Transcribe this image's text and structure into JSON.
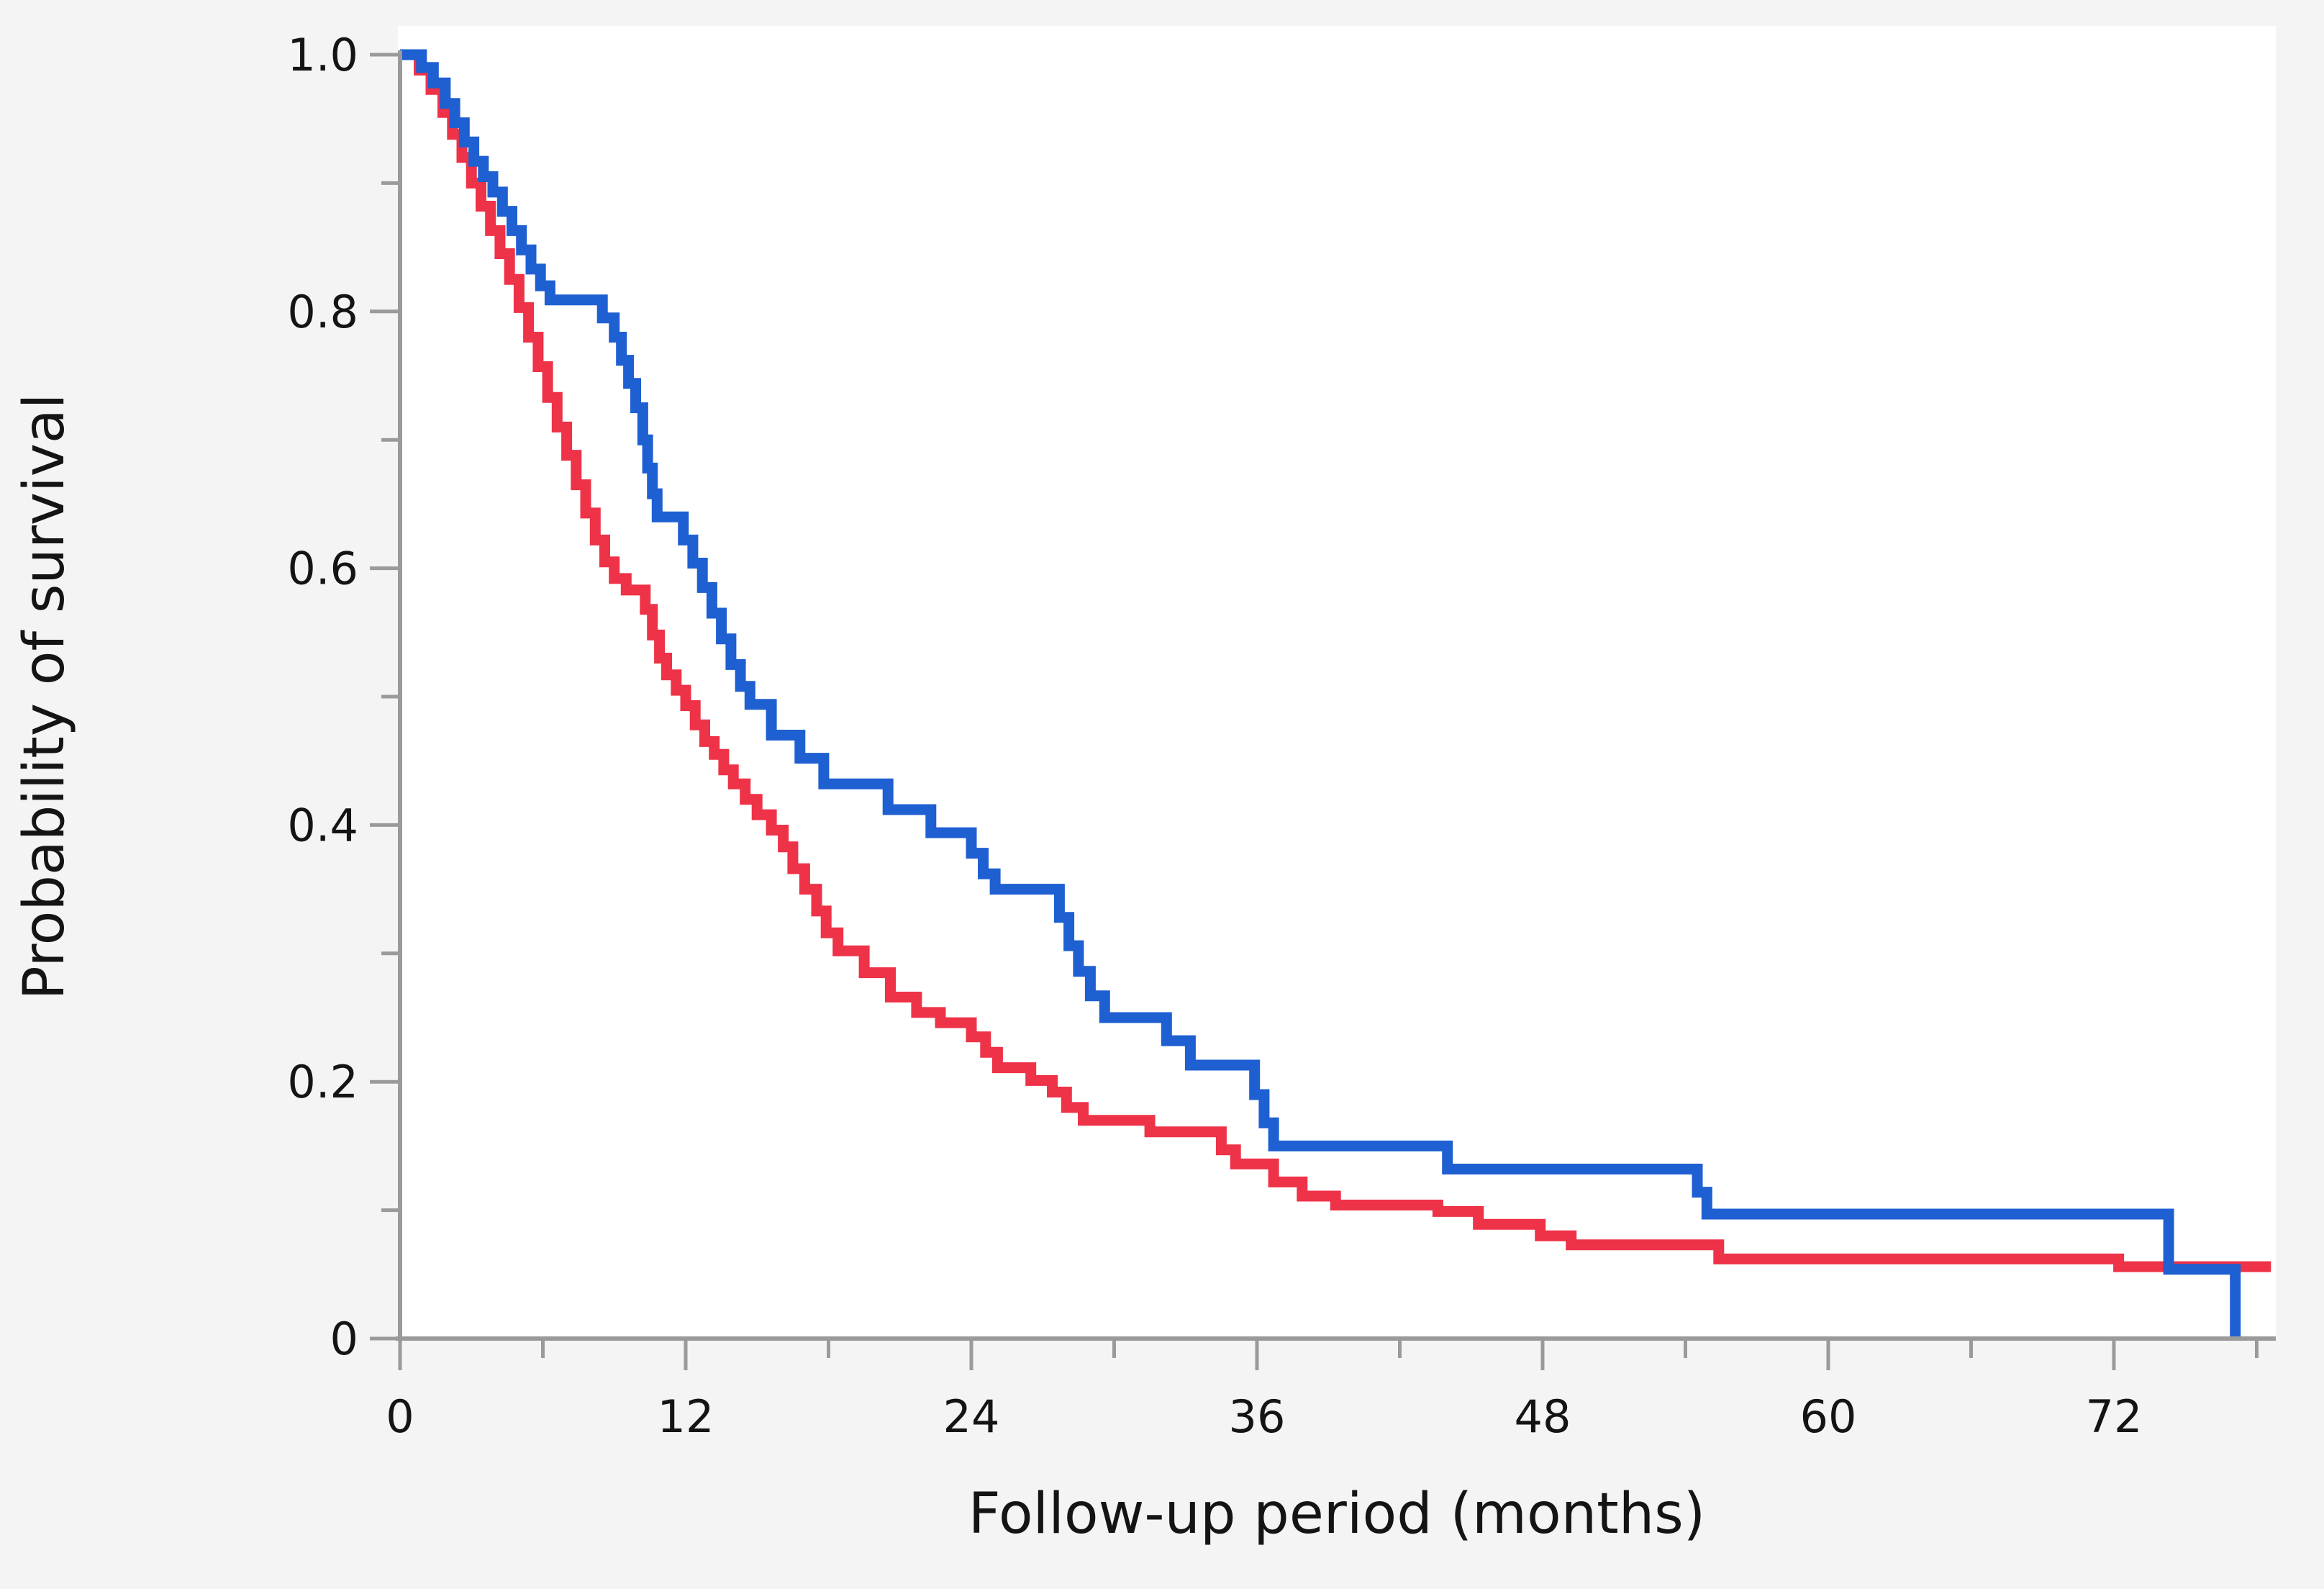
{
  "page": {
    "colors": {
      "background": "#f4f4f4",
      "plot_background": "#ffffff",
      "axis": "#9a9a9a",
      "text": "#141414",
      "series_blue": "#1e5fd2",
      "series_red": "#ee3248"
    }
  },
  "chart_data": {
    "type": "line",
    "subtype": "kaplan-meier-step-survival",
    "title": "",
    "xlabel": "Follow-up period (months)",
    "ylabel": "Probability of survival",
    "xlim": [
      0,
      78.9
    ],
    "ylim": [
      0,
      1.0
    ],
    "grid": false,
    "legend_position": "none",
    "x_major_ticks": [
      0,
      12,
      24,
      36,
      48,
      60,
      72
    ],
    "x_tick_labels": [
      "0",
      "12",
      "24",
      "36",
      "48",
      "60",
      "72"
    ],
    "x_minor_ticks": [
      6,
      18,
      30,
      42,
      54,
      66,
      78
    ],
    "y_major_ticks": [
      1.0,
      0.8,
      0.6,
      0.4,
      0.2,
      0
    ],
    "y_tick_labels": [
      "1.0",
      "0.8",
      "0.6",
      "0.4",
      "0.2",
      "0"
    ],
    "y_minor_ticks": [
      0.9,
      0.7,
      0.5,
      0.3,
      0.1
    ],
    "series": [
      {
        "name": "red-curve",
        "color": "#ee3248",
        "points": [
          [
            0,
            1.0
          ],
          [
            0.8,
            0.988
          ],
          [
            1.3,
            0.973
          ],
          [
            1.8,
            0.955
          ],
          [
            2.2,
            0.938
          ],
          [
            2.6,
            0.92
          ],
          [
            3.0,
            0.9
          ],
          [
            3.4,
            0.882
          ],
          [
            3.8,
            0.863
          ],
          [
            4.2,
            0.845
          ],
          [
            4.6,
            0.825
          ],
          [
            5.0,
            0.803
          ],
          [
            5.4,
            0.78
          ],
          [
            5.8,
            0.757
          ],
          [
            6.2,
            0.733
          ],
          [
            6.6,
            0.71
          ],
          [
            7.0,
            0.688
          ],
          [
            7.4,
            0.665
          ],
          [
            7.8,
            0.643
          ],
          [
            8.2,
            0.622
          ],
          [
            8.6,
            0.605
          ],
          [
            9.0,
            0.592
          ],
          [
            9.5,
            0.583
          ],
          [
            10.3,
            0.568
          ],
          [
            10.6,
            0.548
          ],
          [
            10.9,
            0.53
          ],
          [
            11.2,
            0.517
          ],
          [
            11.6,
            0.505
          ],
          [
            12.0,
            0.493
          ],
          [
            12.4,
            0.478
          ],
          [
            12.8,
            0.465
          ],
          [
            13.2,
            0.455
          ],
          [
            13.6,
            0.443
          ],
          [
            14.0,
            0.432
          ],
          [
            14.5,
            0.42
          ],
          [
            15.0,
            0.408
          ],
          [
            15.6,
            0.396
          ],
          [
            16.1,
            0.383
          ],
          [
            16.5,
            0.366
          ],
          [
            17.0,
            0.35
          ],
          [
            17.5,
            0.333
          ],
          [
            17.9,
            0.316
          ],
          [
            18.4,
            0.302
          ],
          [
            19.5,
            0.285
          ],
          [
            20.6,
            0.266
          ],
          [
            21.7,
            0.254
          ],
          [
            22.7,
            0.246
          ],
          [
            24.0,
            0.235
          ],
          [
            24.6,
            0.223
          ],
          [
            25.1,
            0.211
          ],
          [
            26.5,
            0.201
          ],
          [
            27.4,
            0.192
          ],
          [
            28.0,
            0.18
          ],
          [
            28.7,
            0.17
          ],
          [
            31.5,
            0.161
          ],
          [
            34.5,
            0.147
          ],
          [
            35.1,
            0.136
          ],
          [
            36.7,
            0.122
          ],
          [
            37.9,
            0.111
          ],
          [
            39.3,
            0.104
          ],
          [
            43.6,
            0.099
          ],
          [
            45.3,
            0.089
          ],
          [
            47.9,
            0.08
          ],
          [
            49.2,
            0.073
          ],
          [
            55.4,
            0.062
          ],
          [
            72.2,
            0.056
          ],
          [
            78.6,
            0.056
          ]
        ]
      },
      {
        "name": "blue-curve",
        "color": "#1e5fd2",
        "points": [
          [
            0,
            1.0
          ],
          [
            0.9,
            0.99
          ],
          [
            1.4,
            0.978
          ],
          [
            1.9,
            0.962
          ],
          [
            2.3,
            0.947
          ],
          [
            2.7,
            0.932
          ],
          [
            3.1,
            0.917
          ],
          [
            3.5,
            0.905
          ],
          [
            3.9,
            0.893
          ],
          [
            4.3,
            0.878
          ],
          [
            4.7,
            0.863
          ],
          [
            5.1,
            0.848
          ],
          [
            5.5,
            0.833
          ],
          [
            5.9,
            0.82
          ],
          [
            6.3,
            0.809
          ],
          [
            8.5,
            0.795
          ],
          [
            9.0,
            0.78
          ],
          [
            9.3,
            0.762
          ],
          [
            9.6,
            0.744
          ],
          [
            9.9,
            0.725
          ],
          [
            10.2,
            0.7
          ],
          [
            10.4,
            0.678
          ],
          [
            10.6,
            0.658
          ],
          [
            10.8,
            0.64
          ],
          [
            11.9,
            0.622
          ],
          [
            12.3,
            0.604
          ],
          [
            12.7,
            0.585
          ],
          [
            13.1,
            0.565
          ],
          [
            13.5,
            0.545
          ],
          [
            13.9,
            0.525
          ],
          [
            14.3,
            0.508
          ],
          [
            14.7,
            0.494
          ],
          [
            15.6,
            0.47
          ],
          [
            16.8,
            0.452
          ],
          [
            17.8,
            0.432
          ],
          [
            20.5,
            0.412
          ],
          [
            22.3,
            0.394
          ],
          [
            24.0,
            0.378
          ],
          [
            24.5,
            0.362
          ],
          [
            25.0,
            0.35
          ],
          [
            27.7,
            0.328
          ],
          [
            28.1,
            0.306
          ],
          [
            28.5,
            0.286
          ],
          [
            29.0,
            0.267
          ],
          [
            29.6,
            0.25
          ],
          [
            32.2,
            0.232
          ],
          [
            33.2,
            0.213
          ],
          [
            35.9,
            0.19
          ],
          [
            36.3,
            0.168
          ],
          [
            36.7,
            0.15
          ],
          [
            44.0,
            0.132
          ],
          [
            54.5,
            0.114
          ],
          [
            54.9,
            0.097
          ],
          [
            74.3,
            0.054
          ],
          [
            77.1,
            0.0
          ]
        ]
      }
    ]
  }
}
